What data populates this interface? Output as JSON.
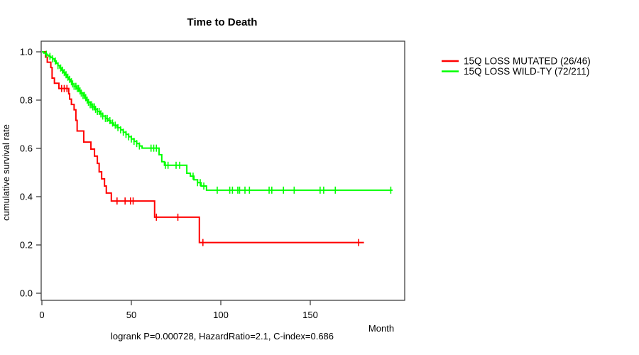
{
  "title": "Time to Death",
  "y_axis": {
    "label": "cumulative survival rate",
    "tick_labels": [
      "0.0",
      "0.2",
      "0.4",
      "0.6",
      "0.8",
      "1.0"
    ],
    "tick_values": [
      0.0,
      0.2,
      0.4,
      0.6,
      0.8,
      1.0
    ]
  },
  "x_axis": {
    "label": "Month",
    "tick_labels": [
      "0",
      "50",
      "100",
      "150"
    ],
    "tick_values": [
      0,
      50,
      100,
      150
    ]
  },
  "annotation": "logrank P=0.000728, HazardRatio=2.1, C-index=0.686",
  "legend": [
    {
      "label": "15Q LOSS MUTATED (26/46)",
      "color": "#ff0000"
    },
    {
      "label": "15Q LOSS WILD-TY (72/211)",
      "color": "#00ff00"
    }
  ],
  "colors": {
    "mutated": "#ff0000",
    "wildtype": "#00ff00",
    "axis": "#333333",
    "text": "#000000"
  },
  "chart_data": {
    "type": "line",
    "subtype": "kaplan-meier-step",
    "title": "Time to Death",
    "xlabel": "Month",
    "ylabel": "cumulative survival rate",
    "xlim": [
      0,
      202
    ],
    "ylim": [
      0.0,
      1.0
    ],
    "grid": false,
    "legend_position": "top-right-outside",
    "series": [
      {
        "name": "15Q LOSS MUTATED (26/46)",
        "color": "#ff0000",
        "end_month": 180,
        "steps": [
          [
            0,
            1.0
          ],
          [
            2,
            0.978
          ],
          [
            3,
            0.957
          ],
          [
            5,
            0.935
          ],
          [
            5.7,
            0.891
          ],
          [
            7,
            0.87
          ],
          [
            9.5,
            0.848
          ],
          [
            15,
            0.826
          ],
          [
            15.5,
            0.804
          ],
          [
            16.5,
            0.782
          ],
          [
            18,
            0.76
          ],
          [
            19,
            0.716
          ],
          [
            19.7,
            0.672
          ],
          [
            23.4,
            0.626
          ],
          [
            27.4,
            0.597
          ],
          [
            29.4,
            0.568
          ],
          [
            31,
            0.538
          ],
          [
            32,
            0.503
          ],
          [
            33.4,
            0.474
          ],
          [
            35,
            0.444
          ],
          [
            36,
            0.415
          ],
          [
            38.8,
            0.382
          ],
          [
            63,
            0.315
          ],
          [
            88,
            0.21
          ]
        ],
        "censor_months": [
          11,
          12.5,
          14,
          42,
          46.5,
          49.5,
          51,
          64,
          76,
          90,
          177
        ]
      },
      {
        "name": "15Q LOSS WILD-TY (72/211)",
        "color": "#00ff00",
        "end_month": 196,
        "steps": [
          [
            0,
            1.0
          ],
          [
            1,
            0.995
          ],
          [
            2,
            0.99
          ],
          [
            3,
            0.986
          ],
          [
            4,
            0.981
          ],
          [
            5,
            0.976
          ],
          [
            6,
            0.971
          ],
          [
            7,
            0.962
          ],
          [
            8,
            0.952
          ],
          [
            9,
            0.943
          ],
          [
            10,
            0.933
          ],
          [
            11,
            0.924
          ],
          [
            12,
            0.914
          ],
          [
            13,
            0.905
          ],
          [
            14,
            0.895
          ],
          [
            15,
            0.886
          ],
          [
            16,
            0.876
          ],
          [
            17,
            0.867
          ],
          [
            18,
            0.857
          ],
          [
            19.5,
            0.848
          ],
          [
            21,
            0.838
          ],
          [
            22,
            0.829
          ],
          [
            23,
            0.819
          ],
          [
            24,
            0.81
          ],
          [
            25,
            0.8
          ],
          [
            26,
            0.791
          ],
          [
            27,
            0.781
          ],
          [
            28,
            0.772
          ],
          [
            29.5,
            0.762
          ],
          [
            31,
            0.753
          ],
          [
            32.5,
            0.743
          ],
          [
            34,
            0.734
          ],
          [
            35.5,
            0.724
          ],
          [
            37,
            0.715
          ],
          [
            38.5,
            0.705
          ],
          [
            40,
            0.696
          ],
          [
            42,
            0.686
          ],
          [
            44,
            0.677
          ],
          [
            45.5,
            0.667
          ],
          [
            47,
            0.658
          ],
          [
            48.5,
            0.648
          ],
          [
            50,
            0.639
          ],
          [
            51.5,
            0.629
          ],
          [
            53,
            0.62
          ],
          [
            54.5,
            0.61
          ],
          [
            56,
            0.601
          ],
          [
            65.5,
            0.574
          ],
          [
            67,
            0.545
          ],
          [
            68.5,
            0.53
          ],
          [
            81,
            0.497
          ],
          [
            83,
            0.485
          ],
          [
            85,
            0.47
          ],
          [
            87,
            0.458
          ],
          [
            89,
            0.444
          ],
          [
            92,
            0.427
          ]
        ],
        "censor_months": [
          2.5,
          4.5,
          6,
          7.5,
          9,
          10.5,
          11.5,
          12.5,
          13.5,
          14.5,
          15.5,
          16.5,
          17.2,
          18,
          19,
          19.8,
          20.5,
          21.3,
          22,
          23,
          23.8,
          24.5,
          25.3,
          26,
          27,
          27.8,
          28.5,
          29.3,
          30,
          31,
          32,
          33,
          34,
          35.5,
          36.5,
          38,
          39.5,
          41,
          42.5,
          44,
          45.5,
          47,
          48.5,
          50,
          51.5,
          53,
          54.5,
          61,
          62.5,
          64,
          69,
          70.5,
          75,
          77,
          84.5,
          87,
          88.5,
          90.5,
          98,
          105,
          106.5,
          109.5,
          110.5,
          113.5,
          116,
          127,
          128.5,
          135,
          141,
          155.5,
          157.5,
          164,
          195
        ]
      }
    ]
  }
}
